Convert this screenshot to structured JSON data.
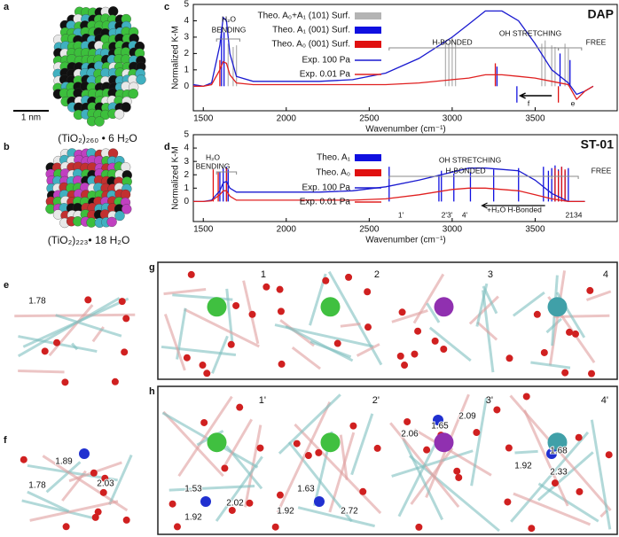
{
  "panel_labels": [
    "a",
    "b",
    "c",
    "d",
    "e",
    "f",
    "g",
    "h"
  ],
  "molecules": {
    "a_formula": "(TiO₂)₂₆₀ • 6 H₂O",
    "scale_bar": "1 nm",
    "b_formula": "(TiO₂)₂₂₃• 18 H₂O"
  },
  "chart_data": [
    {
      "type": "line",
      "title": "DAP",
      "x_label": "Wavenumber (cm⁻¹)",
      "y_label": "Normalized K-M",
      "xlim": [
        1440,
        4000
      ],
      "xticks": [
        1500,
        2000,
        2500,
        3000,
        3500
      ],
      "ylim": [
        -1.5,
        5
      ],
      "yticks": [
        0,
        1,
        2,
        3,
        4,
        5
      ],
      "sticks": [
        {
          "name": "Theo. A₀+A₁ (101) Surf.",
          "color": "#b4b4b4",
          "x": [
            1650,
            1680,
            1700,
            2960,
            2980,
            3000,
            3020,
            3540,
            3560,
            3600,
            3620,
            3680,
            3700
          ],
          "values": [
            2.6,
            2.4,
            2.5,
            2.8,
            2.6,
            3.0,
            2.7,
            2.6,
            2.8,
            2.5,
            2.4,
            2.6,
            2.3
          ]
        },
        {
          "name": "Theo. A₁ (001) Surf.",
          "color": "#1010e0",
          "x": [
            1610,
            1625,
            3270,
            3390,
            3650,
            3710
          ],
          "values": [
            3.6,
            3.3,
            1.2,
            -1.0,
            2.0,
            1.6
          ]
        },
        {
          "name": "Theo. A₀ (001) Surf.",
          "color": "#e01010",
          "x": [
            1600,
            3260,
            3640
          ],
          "values": [
            1.6,
            1.4,
            -1.0
          ]
        }
      ],
      "x": [
        1440,
        1500,
        1550,
        1600,
        1620,
        1640,
        1660,
        1700,
        1800,
        2000,
        2200,
        2400,
        2600,
        2800,
        3000,
        3100,
        3200,
        3300,
        3400,
        3500,
        3600,
        3700,
        3750,
        3800,
        3850
      ],
      "series": [
        {
          "name": "Exp. 100 Pa",
          "color": "#1a1ad0",
          "values": [
            0.1,
            0,
            0.2,
            2.5,
            4.2,
            4.0,
            2.0,
            0.6,
            0.3,
            0.3,
            0.3,
            0.4,
            0.8,
            1.7,
            3.0,
            3.8,
            4.6,
            4.6,
            4.0,
            2.6,
            1.0,
            0.2,
            -0.5,
            -0.3,
            0
          ]
        },
        {
          "name": "Exp. 0.01 Pa",
          "color": "#e02020",
          "values": [
            0,
            0,
            0.1,
            1.0,
            1.5,
            1.4,
            0.7,
            0.2,
            0.1,
            0.1,
            0.1,
            0.1,
            0.1,
            0.2,
            0.4,
            0.5,
            0.7,
            0.7,
            0.6,
            0.5,
            0.3,
            0.1,
            -0.8,
            -0.3,
            0
          ]
        }
      ],
      "annotations": {
        "h2o": "H₂O",
        "bending": "BENDING",
        "h_bonded": "H-BONDED",
        "oh_stretching": "OH  STRETCHING",
        "free": "FREE",
        "f": "f",
        "e": "e"
      }
    },
    {
      "type": "line",
      "title": "ST-01",
      "x_label": "Wavenumber (cm⁻¹)",
      "y_label": "Normalized K-M",
      "xlim": [
        1440,
        4000
      ],
      "xticks": [
        1500,
        2000,
        2500,
        3000,
        3500
      ],
      "ylim": [
        -1.5,
        5
      ],
      "yticks": [
        0,
        1,
        2,
        3,
        4,
        5
      ],
      "sticks": [
        {
          "name": "Theo. A₁",
          "color": "#1010e0",
          "x": [
            1600,
            1620,
            1640,
            1650,
            2620,
            2920,
            2935,
            3010,
            3110,
            3250,
            3400,
            3550,
            3580,
            3600,
            3620,
            3640,
            3660,
            3680,
            3700
          ],
          "values": [
            2.2,
            2.5,
            2.6,
            2.4,
            2.6,
            2.0,
            2.3,
            2.1,
            2.2,
            2.4,
            2.5,
            2.6,
            2.3,
            2.5,
            2.7,
            2.4,
            2.6,
            2.3,
            2.5
          ]
        },
        {
          "name": "Theo. A₀",
          "color": "#e01010",
          "x": [
            1560,
            1590,
            1640,
            3620,
            3640,
            3660,
            3680
          ],
          "values": [
            2.4,
            2.2,
            2.5,
            2.5,
            2.3,
            2.6,
            2.4
          ]
        }
      ],
      "x": [
        1440,
        1500,
        1550,
        1600,
        1620,
        1640,
        1660,
        1700,
        1800,
        2000,
        2200,
        2400,
        2600,
        2800,
        3000,
        3100,
        3200,
        3300,
        3400,
        3500,
        3600,
        3700,
        3800
      ],
      "series": [
        {
          "name": "Exp. 100 Pa",
          "color": "#1a1ad0",
          "values": [
            0,
            0,
            0.1,
            0.8,
            1.4,
            1.5,
            1.0,
            0.7,
            0.7,
            0.7,
            0.7,
            0.8,
            1.1,
            1.6,
            2.2,
            2.5,
            2.5,
            2.4,
            2.3,
            1.6,
            0.6,
            0,
            0
          ]
        },
        {
          "name": "Exp. 0.01 Pa",
          "color": "#e02020",
          "values": [
            0,
            0,
            0.05,
            0.5,
            0.8,
            0.8,
            0.4,
            0.1,
            0.1,
            0.1,
            0.1,
            0.1,
            0.2,
            0.5,
            0.9,
            1.0,
            1.0,
            0.9,
            0.8,
            0.5,
            0.2,
            0,
            0
          ]
        }
      ],
      "annotations": {
        "h2o": "H₂O",
        "bending": "BENDING",
        "oh_stretching": "OH  STRETCHING",
        "h_bonded": "H-BONDED",
        "free": "FREE",
        "s1": "1'",
        "s23": "2'3'",
        "s4": "4'",
        "s2134": "2134",
        "shift": "+H₂O H-Bonded"
      }
    }
  ],
  "structures": {
    "e": {
      "distances": [
        "1.78"
      ]
    },
    "f": {
      "distances": [
        "1.89",
        "1.78",
        "2.03"
      ]
    },
    "g": {
      "labels": [
        "1",
        "2",
        "3",
        "4"
      ]
    },
    "h": {
      "labels": [
        "1'",
        "2'",
        "3'",
        "4'"
      ],
      "distances": [
        "1.53",
        "2.02",
        "1.92",
        "1.63",
        "1.92",
        "2.72",
        "2.06",
        "1.65",
        "2.09",
        "1.92",
        "1.68",
        "2.33"
      ]
    }
  }
}
